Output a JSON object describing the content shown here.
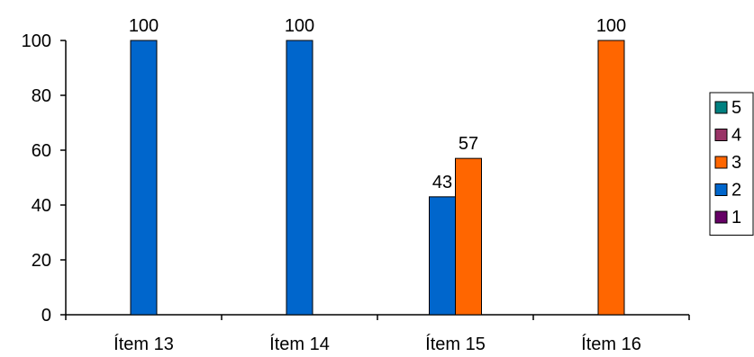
{
  "chart_data": {
    "type": "bar",
    "categories": [
      "Ítem 13",
      "Ítem 14",
      "Ítem 15",
      "Ítem 16"
    ],
    "series": [
      {
        "name": "1",
        "color": "#660066",
        "values": [
          0,
          0,
          0,
          0
        ]
      },
      {
        "name": "2",
        "color": "#0066CC",
        "values": [
          100,
          100,
          43,
          0
        ]
      },
      {
        "name": "3",
        "color": "#FF6600",
        "values": [
          0,
          0,
          57,
          100
        ]
      },
      {
        "name": "4",
        "color": "#993366",
        "values": [
          0,
          0,
          0,
          0
        ]
      },
      {
        "name": "5",
        "color": "#008080",
        "values": [
          0,
          0,
          0,
          0
        ]
      }
    ],
    "legend_order": [
      "5",
      "4",
      "3",
      "2",
      "1"
    ],
    "data_labels": [
      {
        "category": "Ítem 13",
        "series": "2",
        "text": "100"
      },
      {
        "category": "Ítem 14",
        "series": "2",
        "text": "100"
      },
      {
        "category": "Ítem 15",
        "series": "3",
        "text": "57"
      },
      {
        "category": "Ítem 15",
        "series": "2",
        "text": "43"
      },
      {
        "category": "Ítem 16",
        "series": "3",
        "text": "100"
      }
    ],
    "yticks": [
      "0",
      "20",
      "40",
      "60",
      "80",
      "100"
    ],
    "ylim": [
      0,
      100
    ],
    "grid": false,
    "legend_position": "right",
    "title": "",
    "xlabel": "",
    "ylabel": ""
  }
}
